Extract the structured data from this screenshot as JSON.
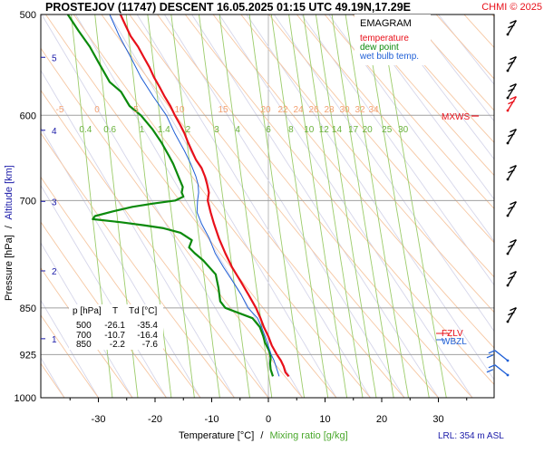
{
  "header": {
    "title": "PROSTEJOV (11747)   DESCENT   16.05.2025 01:15 UTC  49.19N,17.29E",
    "copyright": "CHMI © 2025"
  },
  "legend": {
    "title": "EMAGRAM",
    "items": [
      {
        "label": "temperature",
        "color": "#e8101a"
      },
      {
        "label": "dew point",
        "color": "#0c8a0c"
      },
      {
        "label": "wet bulb temp.",
        "color": "#1f5fd6"
      }
    ]
  },
  "table": {
    "header": [
      "p [hPa]",
      "T",
      "Td [°C]"
    ],
    "rows": [
      [
        "500",
        "-26.1",
        "-35.4"
      ],
      [
        "700",
        "-10.7",
        "-16.4"
      ],
      [
        "850",
        "-2.2",
        "-7.6"
      ]
    ]
  },
  "levels": {
    "mxws": "MXWS",
    "fzlv": "FZLV",
    "wbzl": "WBZL"
  },
  "footer": {
    "xlabel_temp": "Temperature [°C]",
    "xlabel_sep": "/",
    "xlabel_mix": "Mixing ratio [g/kg]",
    "lrl": "LRL: 354 m ASL"
  },
  "axes": {
    "ylabel_pressure": "Pressure [hPa]",
    "ylabel_sep": "/",
    "ylabel_alt": "Altitude [km]"
  },
  "colors": {
    "temperature": "#e8101a",
    "dewpoint": "#0c8a0c",
    "wetbulb": "#1f5fd6",
    "mixing": "#9ccc6a",
    "theta": "#f6c7a2",
    "thetae": "#d6d6ea",
    "isobar": "#a0a0a0"
  },
  "chart_data": {
    "type": "line",
    "x_axis": {
      "label": "Temperature [°C]",
      "ticks": [
        -30,
        -20,
        -10,
        0,
        10,
        20,
        30
      ],
      "range": [
        -40.5,
        39
      ]
    },
    "y_axis": {
      "label": "Pressure [hPa]",
      "ticks": [
        500,
        600,
        700,
        850,
        925,
        1000
      ],
      "range": [
        500,
        1000
      ],
      "scale": "log"
    },
    "altitude_ticks_km": [
      1,
      2,
      3,
      4,
      5
    ],
    "mixing_ratio_labels": [
      "0.4",
      "0.6",
      "1",
      "1.4",
      "2",
      "3",
      "4",
      "6",
      "8",
      "10",
      "12",
      "14",
      "17",
      "20",
      "25",
      "30"
    ],
    "mixing_ratio_values": [
      0.4,
      0.6,
      1,
      1.4,
      2,
      3,
      4,
      6,
      8,
      10,
      12,
      14,
      17,
      20,
      25,
      30
    ],
    "theta_labels": [
      "-5",
      "0",
      "5",
      "10",
      "15",
      "20",
      "22",
      "24",
      "26",
      "28",
      "30",
      "32",
      "34"
    ],
    "series": [
      {
        "name": "temperature",
        "points": [
          [
            962,
            3.6
          ],
          [
            955,
            3.0
          ],
          [
            945,
            2.7
          ],
          [
            935,
            2.2
          ],
          [
            925,
            1.5
          ],
          [
            910,
            0.6
          ],
          [
            895,
            0.0
          ],
          [
            880,
            -0.8
          ],
          [
            866,
            -1.4
          ],
          [
            850,
            -2.2
          ],
          [
            830,
            -3.5
          ],
          [
            810,
            -4.9
          ],
          [
            790,
            -6.4
          ],
          [
            770,
            -7.6
          ],
          [
            750,
            -8.7
          ],
          [
            730,
            -9.6
          ],
          [
            715,
            -10.2
          ],
          [
            700,
            -10.7
          ],
          [
            690,
            -10.5
          ],
          [
            680,
            -10.8
          ],
          [
            670,
            -11.2
          ],
          [
            660,
            -11.8
          ],
          [
            650,
            -12.8
          ],
          [
            640,
            -13.5
          ],
          [
            630,
            -14.2
          ],
          [
            620,
            -14.8
          ],
          [
            610,
            -15.6
          ],
          [
            600,
            -16.5
          ],
          [
            590,
            -17.3
          ],
          [
            580,
            -18.3
          ],
          [
            570,
            -19.2
          ],
          [
            560,
            -20.2
          ],
          [
            550,
            -21.0
          ],
          [
            540,
            -22.0
          ],
          [
            530,
            -23.0
          ],
          [
            520,
            -24.3
          ],
          [
            510,
            -25.2
          ],
          [
            500,
            -26.1
          ]
        ]
      },
      {
        "name": "dew point",
        "points": [
          [
            962,
            0.8
          ],
          [
            950,
            0.4
          ],
          [
            940,
            0.3
          ],
          [
            930,
            0.4
          ],
          [
            920,
            0.2
          ],
          [
            905,
            -0.6
          ],
          [
            895,
            -0.9
          ],
          [
            880,
            -1.5
          ],
          [
            866,
            -2.8
          ],
          [
            850,
            -7.6
          ],
          [
            840,
            -8.5
          ],
          [
            820,
            -8.8
          ],
          [
            800,
            -9.3
          ],
          [
            780,
            -11.5
          ],
          [
            770,
            -13.0
          ],
          [
            762,
            -14.0
          ],
          [
            752,
            -13.5
          ],
          [
            742,
            -15.5
          ],
          [
            736,
            -18.5
          ],
          [
            732,
            -22.0
          ],
          [
            728,
            -26.0
          ],
          [
            724,
            -31.0
          ],
          [
            720,
            -30.6
          ],
          [
            714,
            -27.5
          ],
          [
            708,
            -24.0
          ],
          [
            704,
            -20.5
          ],
          [
            700,
            -16.4
          ],
          [
            695,
            -15.0
          ],
          [
            690,
            -15.3
          ],
          [
            683,
            -15.1
          ],
          [
            675,
            -15.6
          ],
          [
            665,
            -16.2
          ],
          [
            655,
            -16.8
          ],
          [
            645,
            -17.6
          ],
          [
            630,
            -18.9
          ],
          [
            615,
            -20.5
          ],
          [
            600,
            -22.5
          ],
          [
            590,
            -24.5
          ],
          [
            575,
            -26.0
          ],
          [
            565,
            -28.0
          ],
          [
            545,
            -30.0
          ],
          [
            530,
            -31.5
          ],
          [
            515,
            -33.5
          ],
          [
            500,
            -35.4
          ]
        ]
      },
      {
        "name": "wet bulb temp.",
        "points": [
          [
            962,
            1.9
          ],
          [
            935,
            1.0
          ],
          [
            925,
            0.5
          ],
          [
            900,
            -0.4
          ],
          [
            880,
            -1.2
          ],
          [
            866,
            -1.9
          ],
          [
            850,
            -3.6
          ],
          [
            830,
            -4.8
          ],
          [
            810,
            -6.3
          ],
          [
            790,
            -7.9
          ],
          [
            770,
            -9.4
          ],
          [
            750,
            -10.4
          ],
          [
            730,
            -11.8
          ],
          [
            715,
            -12.6
          ],
          [
            700,
            -12.5
          ],
          [
            690,
            -12.3
          ],
          [
            680,
            -12.4
          ],
          [
            670,
            -12.8
          ],
          [
            655,
            -13.7
          ],
          [
            640,
            -14.8
          ],
          [
            620,
            -16.5
          ],
          [
            600,
            -18.0
          ],
          [
            580,
            -20.3
          ],
          [
            560,
            -22.5
          ],
          [
            540,
            -24.3
          ],
          [
            520,
            -26.3
          ],
          [
            500,
            -28.0
          ]
        ]
      }
    ]
  }
}
